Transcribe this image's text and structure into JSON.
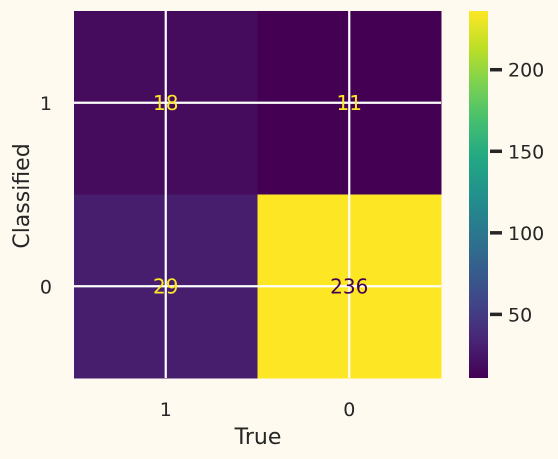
{
  "chart_data": {
    "type": "heatmap",
    "title": "",
    "xlabel": "True",
    "ylabel": "Classified",
    "x_categories": [
      "1",
      "0"
    ],
    "y_categories": [
      "1",
      "0"
    ],
    "values": [
      [
        18,
        11
      ],
      [
        29,
        236
      ]
    ],
    "colormap": "viridis",
    "colorbar": {
      "min": 11,
      "max": 236,
      "ticks": [
        50,
        100,
        150,
        200
      ]
    },
    "grid": true,
    "colors": {
      "background": "#fefaef",
      "grid": "#ffffff",
      "text_on_dark": "#fde725",
      "text_on_light": "#440154"
    }
  }
}
